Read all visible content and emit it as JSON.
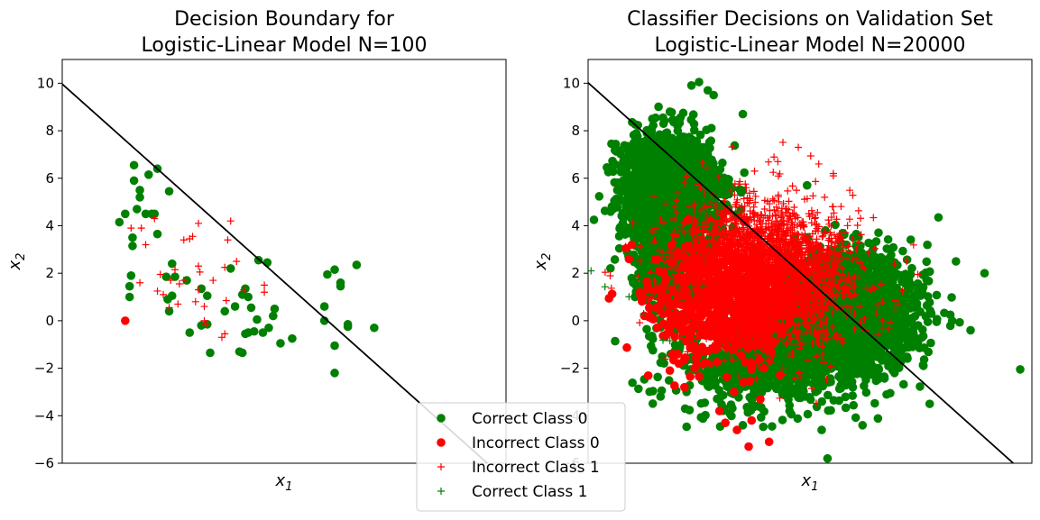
{
  "chart_data": [
    {
      "type": "scatter",
      "title_lines": [
        "Decision Boundary for",
        "Logistic-Linear Model N=100"
      ],
      "xlabel": "x",
      "xlabel_sub": "1",
      "ylabel": "x",
      "ylabel_sub": "2",
      "ylim": [
        -6,
        11
      ],
      "yticks": [
        -6,
        -4,
        -2,
        0,
        2,
        4,
        6,
        8,
        10
      ],
      "ytick_labels": [
        "−6",
        "−4",
        "−2",
        "0",
        "2",
        "4",
        "6",
        "8",
        "10"
      ],
      "boundary": {
        "slope": -1.1,
        "intercept": 3.2,
        "color": "#000000"
      },
      "series": [
        {
          "name": "Correct Class 0",
          "marker": "circle",
          "color": "#008000",
          "points": [
            [
              -4,
              4.5
            ],
            [
              -4.2,
              4.15
            ],
            [
              -3.6,
              4.7
            ],
            [
              -3.5,
              5.2
            ],
            [
              -3.5,
              5.5
            ],
            [
              -3.3,
              4.5
            ],
            [
              -3.1,
              4.5
            ],
            [
              -3,
              4.5
            ],
            [
              -3.7,
              6.55
            ],
            [
              -3.2,
              6.15
            ],
            [
              -2.9,
              6.4
            ],
            [
              -3.7,
              5.9
            ],
            [
              -2.5,
              5.45
            ],
            [
              -3.75,
              3.5
            ],
            [
              -3.75,
              3.15
            ],
            [
              -2.9,
              3.65
            ],
            [
              -3.8,
              1.9
            ],
            [
              -3.85,
              1.45
            ],
            [
              -3.85,
              1
            ],
            [
              -2.6,
              1.85
            ],
            [
              -2.4,
              1.05
            ],
            [
              -2.55,
              0.9
            ],
            [
              -2.5,
              0.4
            ],
            [
              -2.3,
              1.85
            ],
            [
              -1.9,
              1.7
            ],
            [
              -1.4,
              1.35
            ],
            [
              -1.2,
              1.05
            ],
            [
              -1.8,
              -0.5
            ],
            [
              -1.4,
              -0.2
            ],
            [
              -1.2,
              -0.15
            ],
            [
              -1.1,
              -1.35
            ],
            [
              -0.6,
              0.4
            ],
            [
              -0.4,
              2.2
            ],
            [
              -0.25,
              0.6
            ],
            [
              0,
              1.1
            ],
            [
              0.2,
              1
            ],
            [
              0.1,
              1.35
            ],
            [
              0.3,
              0.55
            ],
            [
              0.55,
              2.55
            ],
            [
              0.85,
              2.45
            ],
            [
              0.5,
              0.05
            ],
            [
              0.9,
              -0.3
            ],
            [
              1.3,
              -0.95
            ],
            [
              1.05,
              0.2
            ],
            [
              1.1,
              0.5
            ],
            [
              0.7,
              -0.5
            ],
            [
              0.4,
              -0.45
            ],
            [
              0.2,
              -0.5
            ],
            [
              -0.1,
              -1.3
            ],
            [
              0,
              -1.35
            ],
            [
              0.1,
              -0.55
            ],
            [
              1.7,
              -0.75
            ],
            [
              2.9,
              1.95
            ],
            [
              3.15,
              2.15
            ],
            [
              3.35,
              1.6
            ],
            [
              3.35,
              1.45
            ],
            [
              3.9,
              2.35
            ],
            [
              2.8,
              0.6
            ],
            [
              2.8,
              0
            ],
            [
              3.6,
              -0.15
            ],
            [
              3.6,
              -0.25
            ],
            [
              3.15,
              -1.05
            ],
            [
              3.15,
              -2.2
            ],
            [
              4.5,
              -0.3
            ],
            [
              -2.4,
              2.4
            ]
          ]
        },
        {
          "name": "Incorrect Class 0",
          "marker": "circle",
          "color": "#ff0000",
          "points": [
            [
              -4,
              0
            ]
          ]
        },
        {
          "name": "Incorrect Class 1",
          "marker": "plus",
          "color": "#ff0000",
          "points": [
            [
              -3.8,
              3.9
            ],
            [
              -3.45,
              3.9
            ],
            [
              -3.3,
              3.2
            ],
            [
              -3,
              4.3
            ],
            [
              -1.5,
              4.1
            ],
            [
              -0.4,
              4.2
            ],
            [
              -2.8,
              1.95
            ],
            [
              -3.5,
              1.6
            ],
            [
              -2.9,
              1.25
            ],
            [
              -2.7,
              1.1
            ],
            [
              -2.45,
              1.7
            ],
            [
              -2.3,
              2.15
            ],
            [
              -2.15,
              1.55
            ],
            [
              -2,
              1.7
            ],
            [
              -1.5,
              1.3
            ],
            [
              -1.5,
              2.3
            ],
            [
              -1.45,
              2.05
            ],
            [
              -1,
              1.7
            ],
            [
              -0.6,
              2.25
            ],
            [
              -0.2,
              2.5
            ],
            [
              0.05,
              1.3
            ],
            [
              0.75,
              1.2
            ],
            [
              -0.5,
              3.4
            ],
            [
              -2,
              3.4
            ],
            [
              -1.8,
              3.45
            ],
            [
              -1.7,
              3.55
            ],
            [
              -0.55,
              0.85
            ],
            [
              -2.5,
              0.55
            ],
            [
              -2.2,
              0.7
            ],
            [
              -1.6,
              0.8
            ],
            [
              -1.3,
              0.6
            ],
            [
              -1.3,
              0
            ],
            [
              -1.25,
              -0.15
            ],
            [
              -0.7,
              -0.7
            ],
            [
              -0.6,
              -0.55
            ],
            [
              0.75,
              1.5
            ]
          ]
        }
      ]
    },
    {
      "type": "scatter",
      "title_lines": [
        "Classifier Decisions on Validation Set",
        "Logistic-Linear Model N=20000"
      ],
      "xlabel": "x",
      "xlabel_sub": "1",
      "ylabel": "x",
      "ylabel_sub": "2",
      "ylim": [
        -6,
        11
      ],
      "yticks": [
        -6,
        -4,
        -2,
        0,
        2,
        4,
        6,
        8,
        10
      ],
      "ytick_labels": [
        "−6",
        "−4",
        "−2",
        "0",
        "2",
        "4",
        "6",
        "8",
        "10"
      ],
      "boundary": {
        "slope": -1.1,
        "intercept": 3.2,
        "color": "#000000"
      },
      "clusters": [
        {
          "series": "Correct Class 0",
          "n": 1900,
          "center": [
            -3.3,
            5.3
          ],
          "spread": [
            0.8,
            1.3
          ],
          "rotation": 0.15
        },
        {
          "series": "Correct Class 0",
          "n": 2300,
          "center": [
            2.6,
            0.3
          ],
          "spread": [
            1.2,
            1.2
          ],
          "rotation": -0.2
        },
        {
          "series": "Correct Class 0",
          "n": 900,
          "center": [
            0.3,
            -1.4
          ],
          "spread": [
            1.6,
            1.0
          ],
          "rotation": 0.3
        },
        {
          "series": "Correct Class 0",
          "n": 500,
          "center": [
            -3.6,
            3.0
          ],
          "spread": [
            0.55,
            1.2
          ],
          "rotation": 0.0
        },
        {
          "series": "Incorrect Class 1",
          "n": 3200,
          "center": [
            -0.3,
            1.9
          ],
          "spread": [
            1.5,
            1.4
          ],
          "rotation": -0.45
        },
        {
          "series": "Incorrect Class 0",
          "n": 520,
          "center": [
            -1.6,
            0.6
          ],
          "spread": [
            1.3,
            1.3
          ],
          "rotation": -0.2
        },
        {
          "series": "Correct Class 1",
          "n": 18,
          "center": [
            -3.6,
            1.3
          ],
          "spread": [
            0.8,
            1.2
          ],
          "rotation": 0.0
        }
      ],
      "series": [
        {
          "name": "Correct Class 0",
          "marker": "circle",
          "color": "#008000",
          "points": [
            [
              -6,
              4.25
            ],
            [
              -5.4,
              7.45
            ],
            [
              -4.9,
              6.7
            ],
            [
              -4.3,
              6.5
            ],
            [
              -1.9,
              9.5
            ],
            [
              -2.4,
              10.05
            ],
            [
              -2.1,
              9.7
            ],
            [
              -0.9,
              8.7
            ],
            [
              1.3,
              5.7
            ],
            [
              2.0,
              -5.8
            ],
            [
              5.8,
              4.35
            ],
            [
              6.4,
              2.5
            ],
            [
              6.9,
              -0.4
            ],
            [
              8.6,
              -2.05
            ],
            [
              5.5,
              -3.5
            ],
            [
              3.2,
              -4.4
            ],
            [
              1.8,
              -4.6
            ],
            [
              0.1,
              -4.45
            ],
            [
              -0.9,
              -4.4
            ],
            [
              0.7,
              -3.8
            ],
            [
              -2.1,
              -2.1
            ],
            [
              -4.7,
              5.6
            ],
            [
              -5.2,
              5.5
            ],
            [
              -3.4,
              8.8
            ],
            [
              -4.0,
              8.5
            ]
          ]
        },
        {
          "name": "Incorrect Class 0",
          "marker": "circle",
          "color": "#ff0000",
          "points": [
            [
              -4.7,
              3.2
            ],
            [
              -4.1,
              0.2
            ],
            [
              -4.4,
              1.05
            ],
            [
              -3.4,
              -2.1
            ],
            [
              -2.9,
              -2.8
            ],
            [
              -2.4,
              -2.35
            ],
            [
              -2.5,
              -1.55
            ],
            [
              -1.7,
              -3.8
            ],
            [
              -1.5,
              -4.3
            ],
            [
              -1.1,
              -4.6
            ],
            [
              -0.6,
              -4.2
            ],
            [
              -0.7,
              -5.3
            ],
            [
              0.0,
              -5.1
            ],
            [
              -1.2,
              -3.0
            ],
            [
              -0.3,
              -3.3
            ],
            [
              -4.9,
              3.05
            ],
            [
              -4.8,
              2.6
            ],
            [
              -3.5,
              -0.55
            ]
          ]
        },
        {
          "name": "Incorrect Class 1",
          "marker": "plus",
          "color": "#ff0000",
          "points": [
            [
              1.0,
              7.3
            ],
            [
              1.7,
              6.6
            ],
            [
              2.2,
              6.2
            ],
            [
              2.2,
              6.1
            ],
            [
              -2.9,
              5.8
            ],
            [
              1.9,
              5.2
            ],
            [
              0.3,
              6.7
            ],
            [
              -0.5,
              6.3
            ]
          ]
        },
        {
          "name": "Correct Class 1",
          "marker": "plus",
          "color": "#008000",
          "points": [
            [
              -6.1,
              2.1
            ],
            [
              -4.1,
              1.1
            ],
            [
              -1.7,
              -2.5
            ],
            [
              -3.5,
              2.3
            ]
          ]
        }
      ]
    }
  ],
  "legend": {
    "placement": "bottom-center",
    "entries": [
      {
        "label": "Correct Class 0",
        "marker": "circle",
        "color": "#008000"
      },
      {
        "label": "Incorrect Class 0",
        "marker": "circle",
        "color": "#ff0000"
      },
      {
        "label": "Incorrect Class 1",
        "marker": "plus",
        "color": "#ff0000"
      },
      {
        "label": "Correct Class 1",
        "marker": "plus",
        "color": "#008000"
      }
    ]
  }
}
